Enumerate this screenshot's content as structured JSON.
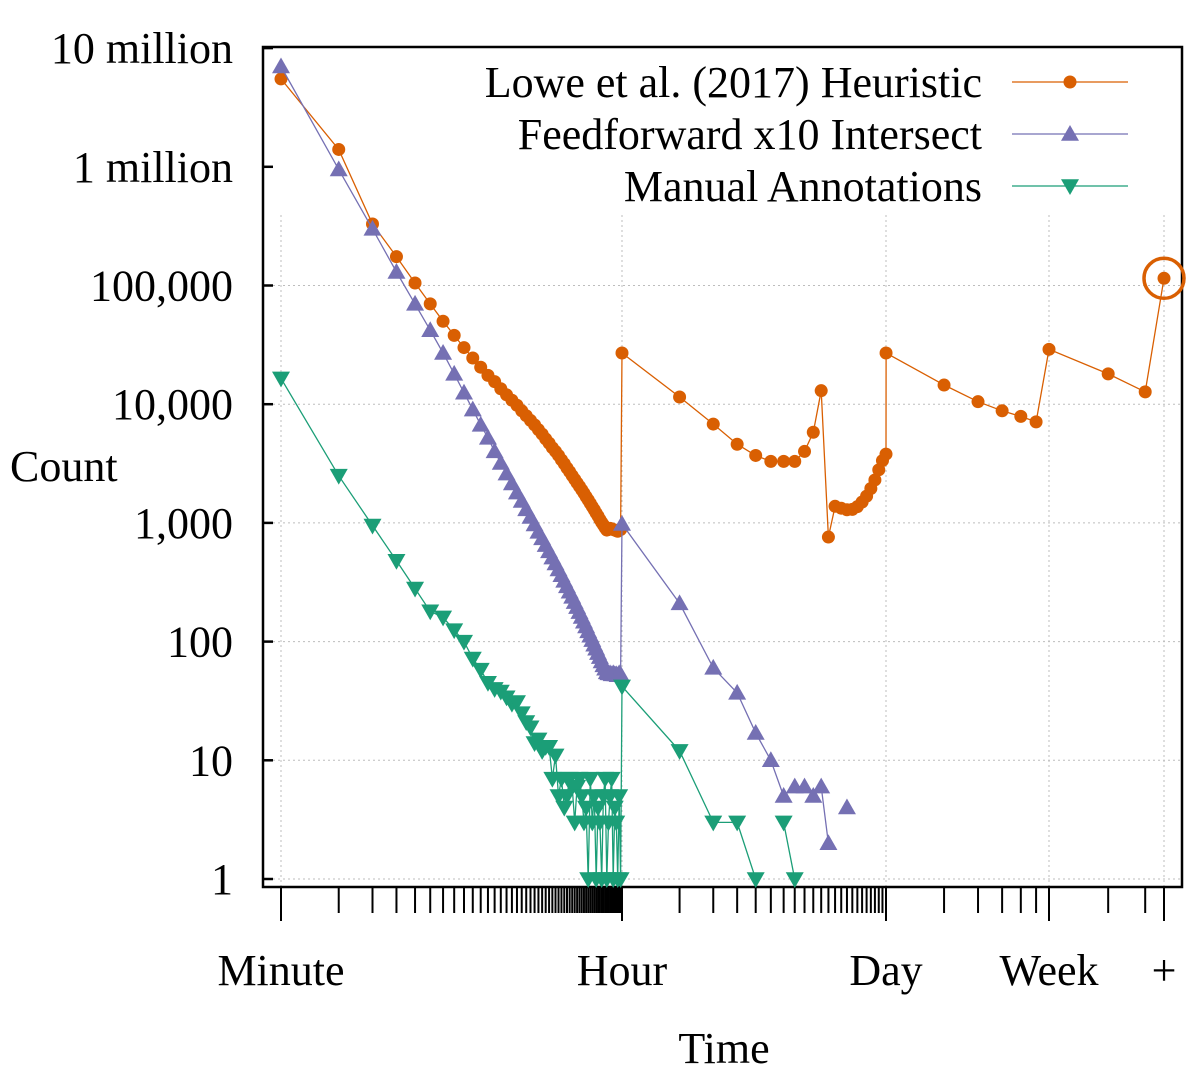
{
  "chart_data": {
    "type": "line",
    "title": "",
    "xlabel": "Time",
    "ylabel": "Count",
    "yscale": "log",
    "ylim": [
      0.8,
      10000000
    ],
    "y_ticks": [
      {
        "value": 1,
        "label": "1"
      },
      {
        "value": 10,
        "label": "10"
      },
      {
        "value": 100,
        "label": "100"
      },
      {
        "value": 1000,
        "label": "1,000"
      },
      {
        "value": 10000,
        "label": "10,000"
      },
      {
        "value": 100000,
        "label": "100,000"
      },
      {
        "value": 1000000,
        "label": "1 million"
      },
      {
        "value": 10000000,
        "label": "10 million"
      }
    ],
    "x_scale_note": "piecewise log-like scale: Minute=1, Hour=60, Day=1440, Week=10080, +=overflow bucket",
    "x_ticks": [
      {
        "value": 1,
        "label": "Minute"
      },
      {
        "value": 60,
        "label": "Hour"
      },
      {
        "value": 1440,
        "label": "Day"
      },
      {
        "value": 10080,
        "label": "Week"
      },
      {
        "value": 20160,
        "label": "+"
      }
    ],
    "legend_position": "top-right",
    "grid": true,
    "series": [
      {
        "name": "Lowe et al. (2017) Heuristic",
        "color": "#d95f02",
        "marker": "circle",
        "points": [
          [
            1,
            5500000
          ],
          [
            2,
            1400000
          ],
          [
            3,
            330000
          ],
          [
            4,
            175000
          ],
          [
            5,
            105000
          ],
          [
            6,
            70000
          ],
          [
            7,
            50000
          ],
          [
            8,
            38000
          ],
          [
            9,
            30000
          ],
          [
            10,
            24500
          ],
          [
            11,
            20500
          ],
          [
            12,
            17500
          ],
          [
            13,
            15500
          ],
          [
            14,
            13500
          ],
          [
            15,
            12000
          ],
          [
            16,
            10800
          ],
          [
            17,
            9800
          ],
          [
            18,
            8800
          ],
          [
            19,
            8000
          ],
          [
            20,
            7300
          ],
          [
            21,
            6700
          ],
          [
            22,
            6100
          ],
          [
            23,
            5600
          ],
          [
            24,
            5100
          ],
          [
            25,
            4700
          ],
          [
            26,
            4300
          ],
          [
            27,
            4000
          ],
          [
            28,
            3700
          ],
          [
            29,
            3400
          ],
          [
            30,
            3150
          ],
          [
            31,
            2900
          ],
          [
            32,
            2700
          ],
          [
            33,
            2500
          ],
          [
            34,
            2330
          ],
          [
            35,
            2170
          ],
          [
            36,
            2030
          ],
          [
            37,
            1900
          ],
          [
            38,
            1780
          ],
          [
            39,
            1660
          ],
          [
            40,
            1560
          ],
          [
            41,
            1460
          ],
          [
            42,
            1370
          ],
          [
            43,
            1290
          ],
          [
            44,
            1210
          ],
          [
            45,
            1140
          ],
          [
            46,
            1070
          ],
          [
            47,
            1010
          ],
          [
            48,
            960
          ],
          [
            49,
            910
          ],
          [
            50,
            870
          ],
          [
            51,
            880
          ],
          [
            52,
            900
          ],
          [
            53,
            890
          ],
          [
            54,
            880
          ],
          [
            55,
            870
          ],
          [
            56,
            860
          ],
          [
            57,
            850
          ],
          [
            58,
            870
          ],
          [
            59,
            880
          ],
          [
            60,
            27000
          ],
          [
            120,
            11500
          ],
          [
            180,
            6800
          ],
          [
            240,
            4600
          ],
          [
            300,
            3700
          ],
          [
            360,
            3300
          ],
          [
            420,
            3300
          ],
          [
            480,
            3300
          ],
          [
            540,
            4000
          ],
          [
            600,
            5800
          ],
          [
            660,
            13000
          ],
          [
            720,
            760
          ],
          [
            780,
            1380
          ],
          [
            840,
            1330
          ],
          [
            900,
            1290
          ],
          [
            960,
            1300
          ],
          [
            1020,
            1370
          ],
          [
            1080,
            1500
          ],
          [
            1140,
            1680
          ],
          [
            1200,
            1950
          ],
          [
            1260,
            2300
          ],
          [
            1320,
            2800
          ],
          [
            1380,
            3350
          ],
          [
            1440,
            3800
          ],
          [
            1441,
            27000
          ],
          [
            2880,
            14500
          ],
          [
            4320,
            10500
          ],
          [
            5760,
            8800
          ],
          [
            7200,
            7900
          ],
          [
            8640,
            7100
          ],
          [
            10080,
            29000
          ],
          [
            14400,
            18000
          ],
          [
            18000,
            12700
          ],
          [
            20160,
            115000
          ]
        ]
      },
      {
        "name": "Feedforward x10 Intersect",
        "color": "#7570b3",
        "marker": "triangle-up",
        "points": [
          [
            1,
            7000000
          ],
          [
            2,
            950000
          ],
          [
            3,
            300000
          ],
          [
            4,
            130000
          ],
          [
            5,
            70000
          ],
          [
            6,
            42000
          ],
          [
            7,
            27000
          ],
          [
            8,
            18000
          ],
          [
            9,
            12500
          ],
          [
            10,
            9000
          ],
          [
            11,
            6700
          ],
          [
            12,
            5200
          ],
          [
            13,
            4000
          ],
          [
            14,
            3200
          ],
          [
            15,
            2600
          ],
          [
            16,
            2150
          ],
          [
            17,
            1800
          ],
          [
            18,
            1530
          ],
          [
            19,
            1300
          ],
          [
            20,
            1120
          ],
          [
            21,
            970
          ],
          [
            22,
            840
          ],
          [
            23,
            740
          ],
          [
            24,
            650
          ],
          [
            25,
            575
          ],
          [
            26,
            510
          ],
          [
            27,
            455
          ],
          [
            28,
            405
          ],
          [
            29,
            362
          ],
          [
            30,
            325
          ],
          [
            31,
            292
          ],
          [
            32,
            263
          ],
          [
            33,
            238
          ],
          [
            34,
            215
          ],
          [
            35,
            195
          ],
          [
            36,
            177
          ],
          [
            37,
            161
          ],
          [
            38,
            147
          ],
          [
            39,
            134
          ],
          [
            40,
            122
          ],
          [
            41,
            112
          ],
          [
            42,
            103
          ],
          [
            43,
            94
          ],
          [
            44,
            87
          ],
          [
            45,
            80
          ],
          [
            46,
            74
          ],
          [
            47,
            68
          ],
          [
            48,
            63
          ],
          [
            49,
            59
          ],
          [
            50,
            55
          ],
          [
            51,
            54
          ],
          [
            52,
            54
          ],
          [
            53,
            53
          ],
          [
            54,
            54
          ],
          [
            55,
            53
          ],
          [
            56,
            53
          ],
          [
            57,
            52
          ],
          [
            58,
            54
          ],
          [
            59,
            53
          ],
          [
            60,
            980
          ],
          [
            120,
            210
          ],
          [
            180,
            60
          ],
          [
            240,
            37
          ],
          [
            300,
            17
          ],
          [
            360,
            10
          ],
          [
            420,
            5
          ],
          [
            480,
            6
          ],
          [
            540,
            6
          ],
          [
            600,
            5
          ],
          [
            660,
            6
          ],
          [
            720,
            2
          ],
          [
            780,
            null
          ],
          [
            840,
            null
          ],
          [
            900,
            4
          ]
        ]
      },
      {
        "name": "Manual Annotations",
        "color": "#1b9e77",
        "marker": "triangle-down",
        "points": [
          [
            1,
            16500
          ],
          [
            2,
            2500
          ],
          [
            3,
            950
          ],
          [
            4,
            480
          ],
          [
            5,
            280
          ],
          [
            6,
            180
          ],
          [
            7,
            160
          ],
          [
            8,
            125
          ],
          [
            9,
            100
          ],
          [
            10,
            72
          ],
          [
            11,
            58
          ],
          [
            12,
            45
          ],
          [
            13,
            40
          ],
          [
            14,
            38
          ],
          [
            15,
            34
          ],
          [
            16,
            30
          ],
          [
            17,
            31
          ],
          [
            18,
            25
          ],
          [
            19,
            21
          ],
          [
            20,
            19
          ],
          [
            21,
            14
          ],
          [
            22,
            15
          ],
          [
            23,
            12
          ],
          [
            24,
            13
          ],
          [
            25,
            13
          ],
          [
            26,
            7
          ],
          [
            27,
            11
          ],
          [
            28,
            5
          ],
          [
            29,
            7
          ],
          [
            30,
            4
          ],
          [
            31,
            5
          ],
          [
            32,
            7
          ],
          [
            33,
            6
          ],
          [
            34,
            3
          ],
          [
            35,
            6
          ],
          [
            36,
            7
          ],
          [
            37,
            5
          ],
          [
            38,
            3
          ],
          [
            39,
            4
          ],
          [
            40,
            1
          ],
          [
            41,
            7
          ],
          [
            42,
            3
          ],
          [
            43,
            5
          ],
          [
            44,
            1
          ],
          [
            45,
            4
          ],
          [
            46,
            3
          ],
          [
            47,
            1
          ],
          [
            48,
            5
          ],
          [
            49,
            7
          ],
          [
            50,
            1
          ],
          [
            51,
            3
          ],
          [
            52,
            5
          ],
          [
            53,
            7
          ],
          [
            54,
            1
          ],
          [
            55,
            4
          ],
          [
            56,
            3
          ],
          [
            57,
            1
          ],
          [
            58,
            5
          ],
          [
            59,
            1
          ],
          [
            60,
            42
          ],
          [
            120,
            12
          ],
          [
            180,
            3
          ],
          [
            240,
            3
          ],
          [
            300,
            1
          ],
          [
            360,
            null
          ],
          [
            420,
            3
          ],
          [
            480,
            1
          ]
        ]
      }
    ]
  }
}
